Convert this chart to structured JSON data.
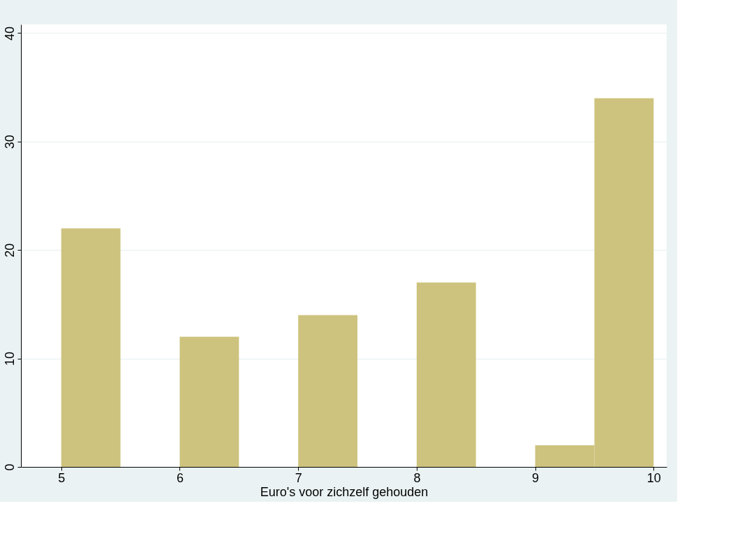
{
  "chart_data": {
    "type": "histogram",
    "xlabel": "Euro's voor zichzelf gehouden",
    "bins": [
      5,
      5.5,
      6,
      6.5,
      7,
      7.5,
      8,
      8.5,
      9,
      9.5,
      10
    ],
    "values": [
      22,
      0,
      12,
      0,
      14,
      0,
      17,
      0,
      2,
      34
    ],
    "color": "#cdc37e",
    "xlim": [
      4.66,
      10.11
    ],
    "ylim": [
      0,
      40.8
    ],
    "xticks": [
      5,
      6,
      7,
      8,
      9,
      10
    ],
    "yticks": [
      0,
      10,
      20,
      30,
      40
    ],
    "grid": "y"
  }
}
